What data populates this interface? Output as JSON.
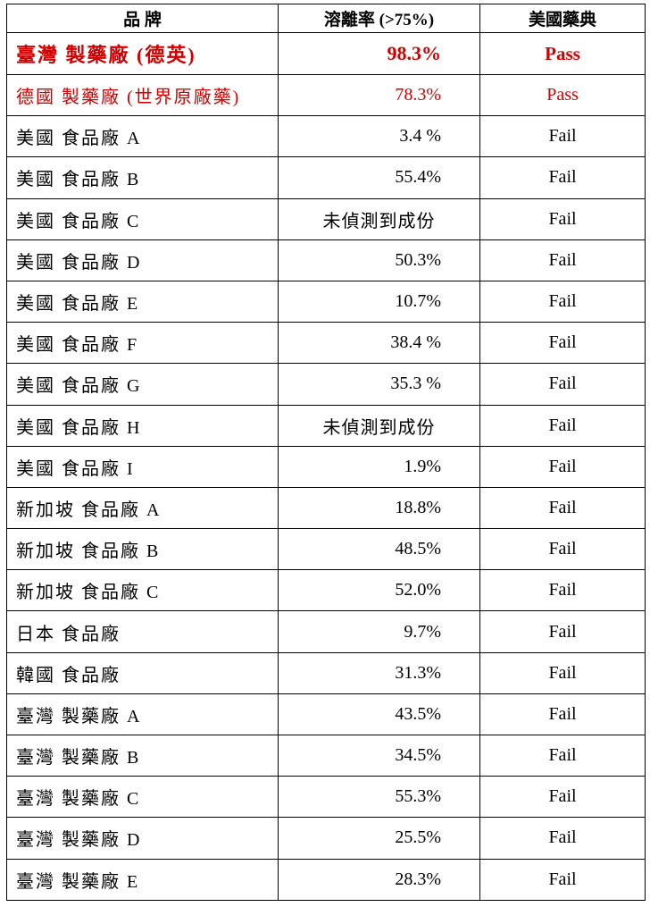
{
  "headers": {
    "brand": "品 牌",
    "rate": "溶離率 (>75%)",
    "usp": "美國藥典"
  },
  "colors": {
    "highlight": "#d00000",
    "text": "#000000"
  },
  "rows": [
    {
      "brand": "臺灣 製藥廠 (德英)",
      "rate": "98.3%",
      "result": "Pass",
      "style": "red bold"
    },
    {
      "brand": "德國 製藥廠 (世界原廠藥)",
      "rate": "78.3%",
      "result": "Pass",
      "style": "red"
    },
    {
      "brand": "美國 食品廠 A",
      "rate": "3.4 %",
      "result": "Fail"
    },
    {
      "brand": "美國 食品廠 B",
      "rate": "55.4%",
      "result": "Fail"
    },
    {
      "brand": "美國 食品廠 C",
      "rate": "未偵測到成份",
      "result": "Fail",
      "rate_text": true
    },
    {
      "brand": "美國 食品廠 D",
      "rate": "50.3%",
      "result": "Fail"
    },
    {
      "brand": "美國 食品廠 E",
      "rate": "10.7%",
      "result": "Fail"
    },
    {
      "brand": "美國 食品廠 F",
      "rate": "38.4 %",
      "result": "Fail"
    },
    {
      "brand": "美國 食品廠 G",
      "rate": "35.3 %",
      "result": "Fail"
    },
    {
      "brand": "美國 食品廠 H",
      "rate": "未偵測到成份",
      "result": "Fail",
      "rate_text": true
    },
    {
      "brand": "美國 食品廠 I",
      "rate": "1.9%",
      "result": "Fail"
    },
    {
      "brand": "新加坡 食品廠 A",
      "rate": "18.8%",
      "result": "Fail"
    },
    {
      "brand": "新加坡 食品廠 B",
      "rate": "48.5%",
      "result": "Fail"
    },
    {
      "brand": "新加坡 食品廠 C",
      "rate": "52.0%",
      "result": "Fail"
    },
    {
      "brand": "日本 食品廠",
      "rate": "9.7%",
      "result": "Fail"
    },
    {
      "brand": "韓國 食品廠",
      "rate": "31.3%",
      "result": "Fail"
    },
    {
      "brand": "臺灣 製藥廠 A",
      "rate": "43.5%",
      "result": "Fail"
    },
    {
      "brand": "臺灣 製藥廠 B",
      "rate": "34.5%",
      "result": "Fail"
    },
    {
      "brand": "臺灣 製藥廠 C",
      "rate": "55.3%",
      "result": "Fail"
    },
    {
      "brand": "臺灣 製藥廠 D",
      "rate": "25.5%",
      "result": "Fail"
    },
    {
      "brand": "臺灣 製藥廠 E",
      "rate": "28.3%",
      "result": "Fail"
    }
  ]
}
